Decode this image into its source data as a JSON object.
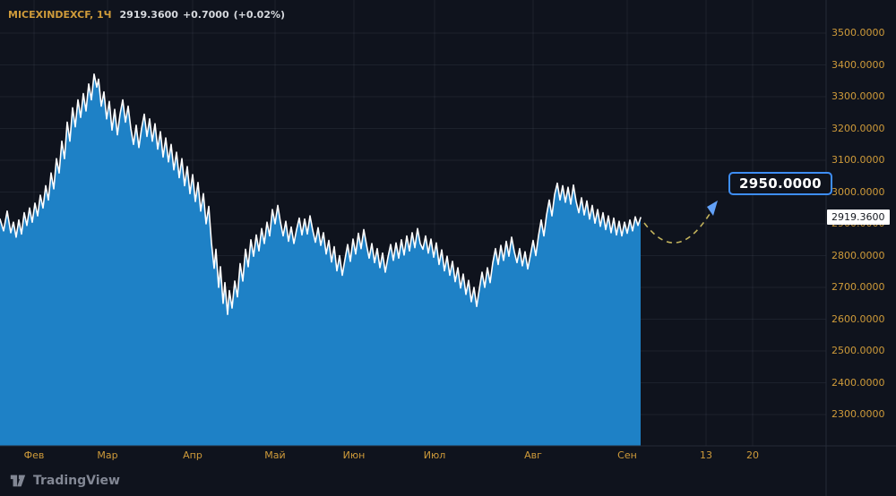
{
  "legend": {
    "symbol": "MICEXINDEXCF, 1Ч",
    "price": "2919.3600",
    "change": "+0.7000",
    "change_pct": "(+0.02%)"
  },
  "price_tag": "2919.3600",
  "logo_text": "TradingView",
  "colors": {
    "background": "#0f131d",
    "area_fill": "#1e81c6",
    "line": "#ffffff",
    "axis_text": "#cf9b3a",
    "legend_values": "#d6d9de",
    "grid": "rgba(151,161,181,0.10)",
    "separator": "#262b38",
    "price_tag_bg": "#ffffff",
    "price_tag_text": "#14181f",
    "callout_border": "#3e8ef7",
    "callout_bg": "#0f131d",
    "arrow": "#c4b45c",
    "arrowhead": "#62a1f8",
    "logo_text_color": "#828794"
  },
  "chart_data": {
    "type": "area",
    "symbol": "MICEXINDEXCF",
    "interval": "1Ч",
    "title": "MICEXINDEXCF, 1Ч 2919.3600 +0.7000 (+0.02%)",
    "last_price": 2919.36,
    "change": "+0.7000",
    "change_percent": "+0.02%",
    "grid": true,
    "y_axis": {
      "min": 2300,
      "max": 3500,
      "tick_step": 100,
      "side": "right",
      "labels": [
        "3500.0000",
        "3400.0000",
        "3300.0000",
        "3200.0000",
        "3100.0000",
        "3000.0000",
        "2900.0000",
        "2800.0000",
        "2700.0000",
        "2600.0000",
        "2500.0000",
        "2400.0000",
        "2300.0000"
      ]
    },
    "x_axis": {
      "labels": [
        "Фев",
        "Мар",
        "Апр",
        "Май",
        "Июн",
        "Июл",
        "Авг",
        "Сен",
        "13",
        "20"
      ],
      "positions": [
        38,
        120,
        215,
        307,
        395,
        485,
        595,
        700,
        788,
        840
      ]
    },
    "annotation": {
      "label": "2950.0000",
      "type": "price-target",
      "arrow": "dashed curve from last price up to label"
    },
    "points": [
      [
        0,
        2915
      ],
      [
        4,
        2878
      ],
      [
        8,
        2940
      ],
      [
        12,
        2872
      ],
      [
        15,
        2905
      ],
      [
        18,
        2858
      ],
      [
        21,
        2912
      ],
      [
        24,
        2868
      ],
      [
        27,
        2935
      ],
      [
        30,
        2895
      ],
      [
        33,
        2950
      ],
      [
        36,
        2905
      ],
      [
        39,
        2965
      ],
      [
        42,
        2925
      ],
      [
        45,
        2990
      ],
      [
        48,
        2950
      ],
      [
        51,
        3020
      ],
      [
        54,
        2975
      ],
      [
        57,
        3060
      ],
      [
        60,
        3010
      ],
      [
        63,
        3105
      ],
      [
        66,
        3060
      ],
      [
        69,
        3160
      ],
      [
        72,
        3105
      ],
      [
        75,
        3220
      ],
      [
        78,
        3160
      ],
      [
        81,
        3265
      ],
      [
        84,
        3205
      ],
      [
        87,
        3290
      ],
      [
        90,
        3235
      ],
      [
        93,
        3310
      ],
      [
        96,
        3255
      ],
      [
        99,
        3340
      ],
      [
        102,
        3290
      ],
      [
        105,
        3371
      ],
      [
        108,
        3330
      ],
      [
        110,
        3355
      ],
      [
        113,
        3270
      ],
      [
        116,
        3315
      ],
      [
        119,
        3230
      ],
      [
        122,
        3285
      ],
      [
        125,
        3195
      ],
      [
        128,
        3260
      ],
      [
        131,
        3180
      ],
      [
        134,
        3245
      ],
      [
        137,
        3290
      ],
      [
        140,
        3220
      ],
      [
        143,
        3270
      ],
      [
        146,
        3200
      ],
      [
        149,
        3150
      ],
      [
        152,
        3210
      ],
      [
        155,
        3140
      ],
      [
        158,
        3200
      ],
      [
        161,
        3245
      ],
      [
        164,
        3175
      ],
      [
        167,
        3230
      ],
      [
        170,
        3160
      ],
      [
        173,
        3215
      ],
      [
        176,
        3135
      ],
      [
        179,
        3190
      ],
      [
        182,
        3110
      ],
      [
        185,
        3170
      ],
      [
        188,
        3095
      ],
      [
        191,
        3150
      ],
      [
        194,
        3070
      ],
      [
        197,
        3125
      ],
      [
        200,
        3045
      ],
      [
        203,
        3105
      ],
      [
        206,
        3020
      ],
      [
        209,
        3080
      ],
      [
        212,
        2995
      ],
      [
        215,
        3055
      ],
      [
        218,
        2970
      ],
      [
        221,
        3030
      ],
      [
        224,
        2940
      ],
      [
        227,
        2995
      ],
      [
        230,
        2900
      ],
      [
        233,
        2955
      ],
      [
        236,
        2840
      ],
      [
        239,
        2760
      ],
      [
        241,
        2820
      ],
      [
        244,
        2700
      ],
      [
        246,
        2765
      ],
      [
        249,
        2650
      ],
      [
        251,
        2715
      ],
      [
        254,
        2615
      ],
      [
        256,
        2690
      ],
      [
        259,
        2635
      ],
      [
        262,
        2720
      ],
      [
        265,
        2670
      ],
      [
        268,
        2775
      ],
      [
        271,
        2720
      ],
      [
        274,
        2820
      ],
      [
        277,
        2765
      ],
      [
        280,
        2850
      ],
      [
        283,
        2798
      ],
      [
        286,
        2865
      ],
      [
        289,
        2815
      ],
      [
        292,
        2885
      ],
      [
        295,
        2838
      ],
      [
        298,
        2905
      ],
      [
        301,
        2862
      ],
      [
        304,
        2945
      ],
      [
        307,
        2900
      ],
      [
        310,
        2958
      ],
      [
        313,
        2905
      ],
      [
        316,
        2862
      ],
      [
        319,
        2908
      ],
      [
        322,
        2845
      ],
      [
        325,
        2890
      ],
      [
        328,
        2838
      ],
      [
        331,
        2882
      ],
      [
        334,
        2918
      ],
      [
        337,
        2865
      ],
      [
        340,
        2915
      ],
      [
        343,
        2868
      ],
      [
        346,
        2925
      ],
      [
        349,
        2880
      ],
      [
        352,
        2842
      ],
      [
        355,
        2888
      ],
      [
        358,
        2832
      ],
      [
        361,
        2872
      ],
      [
        364,
        2805
      ],
      [
        367,
        2848
      ],
      [
        370,
        2780
      ],
      [
        373,
        2828
      ],
      [
        376,
        2752
      ],
      [
        379,
        2800
      ],
      [
        382,
        2738
      ],
      [
        385,
        2788
      ],
      [
        388,
        2835
      ],
      [
        391,
        2782
      ],
      [
        394,
        2852
      ],
      [
        397,
        2805
      ],
      [
        400,
        2870
      ],
      [
        403,
        2822
      ],
      [
        406,
        2882
      ],
      [
        409,
        2835
      ],
      [
        412,
        2792
      ],
      [
        415,
        2838
      ],
      [
        418,
        2778
      ],
      [
        421,
        2822
      ],
      [
        424,
        2762
      ],
      [
        427,
        2808
      ],
      [
        430,
        2748
      ],
      [
        433,
        2795
      ],
      [
        436,
        2835
      ],
      [
        439,
        2785
      ],
      [
        442,
        2840
      ],
      [
        445,
        2792
      ],
      [
        448,
        2850
      ],
      [
        451,
        2802
      ],
      [
        454,
        2862
      ],
      [
        457,
        2815
      ],
      [
        460,
        2872
      ],
      [
        463,
        2825
      ],
      [
        466,
        2885
      ],
      [
        469,
        2838
      ],
      [
        472,
        2820
      ],
      [
        475,
        2862
      ],
      [
        478,
        2808
      ],
      [
        481,
        2852
      ],
      [
        484,
        2795
      ],
      [
        487,
        2840
      ],
      [
        490,
        2772
      ],
      [
        493,
        2818
      ],
      [
        496,
        2752
      ],
      [
        499,
        2798
      ],
      [
        502,
        2738
      ],
      [
        505,
        2782
      ],
      [
        508,
        2718
      ],
      [
        511,
        2762
      ],
      [
        514,
        2698
      ],
      [
        517,
        2742
      ],
      [
        520,
        2678
      ],
      [
        523,
        2722
      ],
      [
        526,
        2655
      ],
      [
        529,
        2700
      ],
      [
        532,
        2640
      ],
      [
        535,
        2695
      ],
      [
        538,
        2748
      ],
      [
        541,
        2700
      ],
      [
        544,
        2762
      ],
      [
        547,
        2715
      ],
      [
        550,
        2778
      ],
      [
        553,
        2822
      ],
      [
        556,
        2772
      ],
      [
        559,
        2832
      ],
      [
        562,
        2785
      ],
      [
        565,
        2845
      ],
      [
        568,
        2798
      ],
      [
        571,
        2858
      ],
      [
        574,
        2812
      ],
      [
        577,
        2778
      ],
      [
        580,
        2822
      ],
      [
        583,
        2768
      ],
      [
        586,
        2812
      ],
      [
        589,
        2758
      ],
      [
        592,
        2802
      ],
      [
        595,
        2848
      ],
      [
        598,
        2800
      ],
      [
        601,
        2862
      ],
      [
        604,
        2912
      ],
      [
        607,
        2862
      ],
      [
        610,
        2928
      ],
      [
        613,
        2975
      ],
      [
        616,
        2925
      ],
      [
        619,
        2992
      ],
      [
        622,
        3028
      ],
      [
        625,
        2975
      ],
      [
        628,
        3020
      ],
      [
        631,
        2968
      ],
      [
        634,
        3015
      ],
      [
        637,
        2962
      ],
      [
        640,
        3022
      ],
      [
        643,
        2970
      ],
      [
        646,
        2935
      ],
      [
        649,
        2982
      ],
      [
        652,
        2928
      ],
      [
        655,
        2972
      ],
      [
        658,
        2915
      ],
      [
        661,
        2958
      ],
      [
        664,
        2902
      ],
      [
        667,
        2945
      ],
      [
        670,
        2892
      ],
      [
        673,
        2935
      ],
      [
        676,
        2882
      ],
      [
        679,
        2925
      ],
      [
        682,
        2872
      ],
      [
        685,
        2918
      ],
      [
        688,
        2865
      ],
      [
        691,
        2908
      ],
      [
        694,
        2862
      ],
      [
        697,
        2905
      ],
      [
        700,
        2870
      ],
      [
        703,
        2912
      ],
      [
        706,
        2878
      ],
      [
        709,
        2922
      ],
      [
        712,
        2895
      ],
      [
        715,
        2919.36
      ]
    ]
  }
}
